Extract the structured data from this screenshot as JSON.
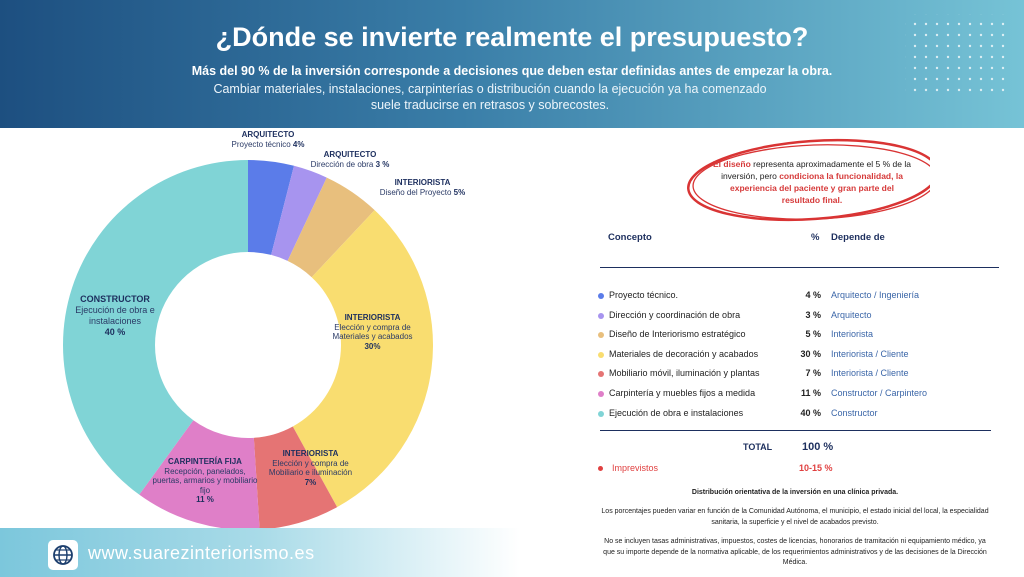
{
  "header": {
    "title": "¿Dónde se invierte realmente el presupuesto?",
    "subtitle": "Más del 90 % de la inversión corresponde a decisiones que deben estar definidas antes de empezar la obra.",
    "description": "Cambiar materiales, instalaciones, carpinterías o distribución cuando la ejecución ya ha comenzado suele traducirse en retrasos y sobrecostes."
  },
  "chart_data": {
    "type": "donut",
    "groups": [
      "ARQUITECTO",
      "ARQUITECTO",
      "INTERIORISTA",
      "INTERIORISTA",
      "INTERIORISTA",
      "CARPINTERÍA FIJA",
      "CONSTRUCTOR"
    ],
    "descriptions": [
      "Proyecto técnico",
      "Dirección de obra",
      "Diseño del Proyecto",
      "Elección y compra de Materiales y acabados",
      "Elección y compra de Mobiliario e iluminación",
      "Recepción, panelados, puertas, armarios y mobiliario fijo",
      "Ejecución de obra e instalaciones"
    ],
    "values": [
      4,
      3,
      5,
      30,
      7,
      11,
      40
    ],
    "value_labels": [
      "4%",
      "3 %",
      "5%",
      "30%",
      "7%",
      "11 %",
      "40 %"
    ],
    "colors": [
      "#5b7ce9",
      "#a794ef",
      "#e8bf7d",
      "#f9dd70",
      "#e57474",
      "#df7fc8",
      "#80d4d6"
    ]
  },
  "callout": [
    "El diseño",
    " representa aproximadamente el 5 % de la inversión,  pero ",
    "condiciona la funcionalidad, la experiencia del paciente y gran parte del resultado final."
  ],
  "table": {
    "headers": [
      "Concepto",
      "%",
      "Depende de"
    ],
    "rows": [
      [
        "Proyecto técnico.",
        "4 %",
        "Arquitecto / Ingeniería"
      ],
      [
        "Dirección y coordinación de obra",
        "3 %",
        "Arquitecto"
      ],
      [
        "Diseño de Interiorismo estratégico",
        "5 %",
        "Interiorista"
      ],
      [
        "Materiales de decoración y acabados",
        "30 %",
        "Interiorista / Cliente"
      ],
      [
        "Mobiliario móvil, iluminación y plantas",
        "7 %",
        "Interiorista / Cliente"
      ],
      [
        "Carpintería y muebles fijos a medida",
        "11 %",
        "Constructor / Carpintero"
      ],
      [
        "Ejecución de obra e instalaciones",
        "40 %",
        "Constructor"
      ]
    ],
    "total": [
      "TOTAL",
      "100 %"
    ],
    "extra": [
      "Imprevistos",
      "10-15 %"
    ]
  },
  "notes": [
    "Distribución orientativa de la inversión en una clínica privada.",
    "Los porcentajes pueden variar en función de la Comunidad Autónoma, el municipio, el estado inicial del local, la especialidad sanitaria, la superficie y el nivel de acabados previsto.",
    "No se incluyen tasas administrativas, impuestos, costes de licencias, honorarios de tramitación ni equipamiento médico, ya que su importe depende de la normativa aplicable, de los requerimientos administrativos y de las decisiones de la Dirección Médica."
  ],
  "footer": {
    "url": "www.suarezinteriorismo.es"
  }
}
